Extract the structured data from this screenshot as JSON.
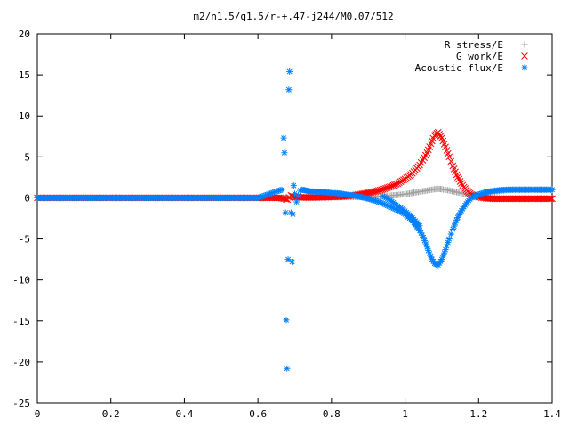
{
  "chart_data": {
    "type": "scatter",
    "title": "m2/n1.5/q1.5/r-+.47-j244/M0.07/512",
    "xlabel": "",
    "ylabel": "",
    "xlim": [
      0,
      1.4
    ],
    "ylim": [
      -25,
      20
    ],
    "xticks": [
      0,
      0.2,
      0.4,
      0.6,
      0.8,
      1,
      1.2,
      1.4
    ],
    "xtick_labels": [
      "0",
      "0.2",
      "0.4",
      "0.6",
      "0.8",
      "1",
      "1.2",
      "1.4"
    ],
    "yticks": [
      20,
      15,
      10,
      5,
      0,
      -5,
      -10,
      -15,
      -20,
      -25
    ],
    "ytick_labels": [
      "20",
      "15",
      "10",
      "5",
      "0",
      "-5",
      "-10",
      "-15",
      "-20",
      "-25"
    ],
    "grid": false,
    "legend_position": "top-right",
    "series": [
      {
        "name": "R stress/E",
        "marker": "+",
        "color": "#a0a0a0",
        "points": [
          [
            0.0,
            0.0
          ],
          [
            0.1,
            0.0
          ],
          [
            0.2,
            0.0
          ],
          [
            0.3,
            0.0
          ],
          [
            0.4,
            0.0
          ],
          [
            0.5,
            0.0
          ],
          [
            0.6,
            0.0
          ],
          [
            0.66,
            0.0
          ],
          [
            0.7,
            0.05
          ],
          [
            0.72,
            0.08
          ],
          [
            0.74,
            0.08
          ],
          [
            0.76,
            0.08
          ],
          [
            0.78,
            0.08
          ],
          [
            0.8,
            0.08
          ],
          [
            0.82,
            0.08
          ],
          [
            0.84,
            0.1
          ],
          [
            0.86,
            0.1
          ],
          [
            0.88,
            0.12
          ],
          [
            0.9,
            0.15
          ],
          [
            0.92,
            0.18
          ],
          [
            0.94,
            0.22
          ],
          [
            0.96,
            0.28
          ],
          [
            0.98,
            0.35
          ],
          [
            1.0,
            0.45
          ],
          [
            1.02,
            0.6
          ],
          [
            1.04,
            0.75
          ],
          [
            1.06,
            0.9
          ],
          [
            1.08,
            1.05
          ],
          [
            1.09,
            1.1
          ],
          [
            1.1,
            1.05
          ],
          [
            1.12,
            0.9
          ],
          [
            1.14,
            0.7
          ],
          [
            1.16,
            0.5
          ],
          [
            1.18,
            0.35
          ],
          [
            1.2,
            0.4
          ],
          [
            1.22,
            0.55
          ],
          [
            1.24,
            0.7
          ],
          [
            1.26,
            0.85
          ],
          [
            1.28,
            0.95
          ],
          [
            1.3,
            1.0
          ],
          [
            1.32,
            1.0
          ],
          [
            1.34,
            1.0
          ],
          [
            1.36,
            1.0
          ],
          [
            1.38,
            1.0
          ],
          [
            1.4,
            1.0
          ]
        ]
      },
      {
        "name": "G work/E",
        "marker": "x",
        "color": "#ff0000",
        "points": [
          [
            0.0,
            0.0
          ],
          [
            0.1,
            0.0
          ],
          [
            0.2,
            0.0
          ],
          [
            0.3,
            0.0
          ],
          [
            0.4,
            0.0
          ],
          [
            0.5,
            0.0
          ],
          [
            0.6,
            0.0
          ],
          [
            0.66,
            0.0
          ],
          [
            0.68,
            -0.2
          ],
          [
            0.69,
            0.3
          ],
          [
            0.7,
            0.1
          ],
          [
            0.72,
            0.05
          ],
          [
            0.74,
            0.05
          ],
          [
            0.76,
            0.05
          ],
          [
            0.78,
            0.08
          ],
          [
            0.8,
            0.1
          ],
          [
            0.82,
            0.15
          ],
          [
            0.84,
            0.2
          ],
          [
            0.86,
            0.3
          ],
          [
            0.88,
            0.45
          ],
          [
            0.9,
            0.6
          ],
          [
            0.92,
            0.8
          ],
          [
            0.94,
            1.05
          ],
          [
            0.96,
            1.35
          ],
          [
            0.98,
            1.75
          ],
          [
            1.0,
            2.3
          ],
          [
            1.02,
            3.0
          ],
          [
            1.04,
            4.0
          ],
          [
            1.06,
            5.5
          ],
          [
            1.07,
            6.6
          ],
          [
            1.08,
            7.6
          ],
          [
            1.09,
            8.0
          ],
          [
            1.1,
            7.3
          ],
          [
            1.11,
            6.2
          ],
          [
            1.12,
            5.0
          ],
          [
            1.13,
            3.9
          ],
          [
            1.14,
            2.8
          ],
          [
            1.15,
            2.0
          ],
          [
            1.16,
            1.3
          ],
          [
            1.17,
            0.8
          ],
          [
            1.18,
            0.4
          ],
          [
            1.2,
            0.1
          ],
          [
            1.22,
            -0.05
          ],
          [
            1.24,
            -0.1
          ],
          [
            1.26,
            -0.1
          ],
          [
            1.28,
            -0.1
          ],
          [
            1.3,
            -0.1
          ],
          [
            1.32,
            -0.1
          ],
          [
            1.34,
            -0.1
          ],
          [
            1.36,
            -0.1
          ],
          [
            1.38,
            -0.1
          ],
          [
            1.4,
            -0.1
          ]
        ]
      },
      {
        "name": "Acoustic flux/E",
        "marker": "*",
        "color": "#0080ff",
        "points": [
          [
            0.0,
            0.0
          ],
          [
            0.1,
            0.0
          ],
          [
            0.2,
            0.0
          ],
          [
            0.3,
            0.0
          ],
          [
            0.4,
            0.0
          ],
          [
            0.5,
            0.0
          ],
          [
            0.6,
            0.0
          ],
          [
            0.665,
            1.0
          ],
          [
            0.67,
            7.3
          ],
          [
            0.672,
            5.5
          ],
          [
            0.675,
            -1.8
          ],
          [
            0.677,
            -14.9
          ],
          [
            0.679,
            -20.8
          ],
          [
            0.682,
            -7.5
          ],
          [
            0.684,
            13.2
          ],
          [
            0.686,
            15.4
          ],
          [
            0.69,
            -1.8
          ],
          [
            0.693,
            -7.8
          ],
          [
            0.695,
            -2.0
          ],
          [
            0.697,
            1.5
          ],
          [
            0.7,
            0.5
          ],
          [
            0.705,
            -0.5
          ],
          [
            0.71,
            0.3
          ],
          [
            0.715,
            0.9
          ],
          [
            0.72,
            1.0
          ],
          [
            0.73,
            0.9
          ],
          [
            0.74,
            0.8
          ],
          [
            0.76,
            0.75
          ],
          [
            0.78,
            0.7
          ],
          [
            0.8,
            0.6
          ],
          [
            0.82,
            0.55
          ],
          [
            0.84,
            0.4
          ],
          [
            0.86,
            0.3
          ],
          [
            0.88,
            0.1
          ],
          [
            0.9,
            -0.1
          ],
          [
            0.92,
            -0.35
          ],
          [
            0.94,
            -0.7
          ],
          [
            0.96,
            -1.1
          ],
          [
            0.98,
            -1.5
          ],
          [
            1.0,
            -2.0
          ],
          [
            1.02,
            -2.8
          ],
          [
            1.04,
            -4.0
          ],
          [
            1.05,
            -4.8
          ],
          [
            1.06,
            -6.0
          ],
          [
            1.07,
            -7.2
          ],
          [
            1.08,
            -8.0
          ],
          [
            1.09,
            -8.2
          ],
          [
            1.1,
            -7.5
          ],
          [
            1.11,
            -6.3
          ],
          [
            1.12,
            -5.0
          ],
          [
            1.13,
            -3.8
          ],
          [
            1.14,
            -2.7
          ],
          [
            1.15,
            -1.8
          ],
          [
            1.16,
            -1.1
          ],
          [
            1.17,
            -0.5
          ],
          [
            1.18,
            0.0
          ],
          [
            1.2,
            0.4
          ],
          [
            1.22,
            0.7
          ],
          [
            1.24,
            0.85
          ],
          [
            1.26,
            0.95
          ],
          [
            1.28,
            1.0
          ],
          [
            1.3,
            1.0
          ],
          [
            1.32,
            1.0
          ],
          [
            1.34,
            1.0
          ],
          [
            1.36,
            1.0
          ],
          [
            1.38,
            1.0
          ],
          [
            1.4,
            1.0
          ],
          [
            0.94,
            0.2
          ],
          [
            0.96,
            -0.3
          ],
          [
            0.98,
            -1.0
          ],
          [
            1.0,
            -1.6
          ],
          [
            1.02,
            -2.4
          ],
          [
            1.04,
            -3.4
          ]
        ]
      }
    ]
  }
}
